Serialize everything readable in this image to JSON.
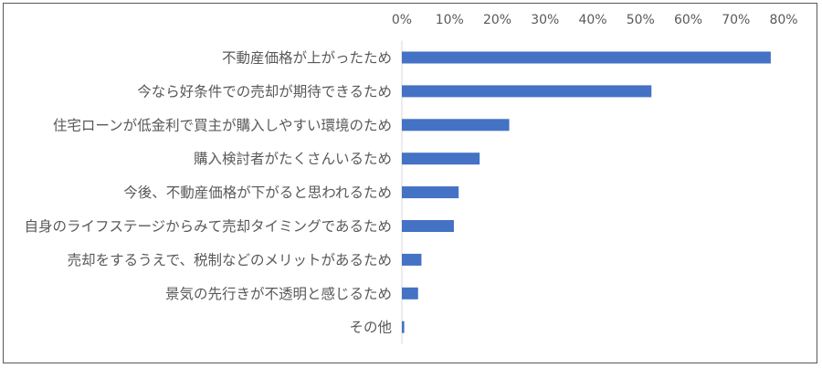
{
  "chart_data": {
    "type": "bar",
    "orientation": "horizontal",
    "title": "",
    "xlabel": "",
    "ylabel": "",
    "xlim": [
      0,
      80
    ],
    "x_ticks": [
      "0%",
      "10%",
      "20%",
      "30%",
      "40%",
      "50%",
      "60%",
      "70%",
      "80%"
    ],
    "tick_axis_position": "top",
    "grid": false,
    "bar_color": "#4472C4",
    "categories": [
      "不動産価格が上がったため",
      "今なら好条件での売却が期待できるため",
      "住宅ローンが低金利で買主が購入しやすい環境のため",
      "購入検討者がたくさんいるため",
      "今後、不動産価格が下がると思われるため",
      "自身のライフステージからみて売却タイミングであるため",
      "売却をするうえで、税制などのメリットがあるため",
      "景気の先行きが不透明と感じるため",
      "その他"
    ],
    "values": [
      77.3,
      52.3,
      22.5,
      16.3,
      11.9,
      10.9,
      4.1,
      3.4,
      0.5
    ],
    "unit": "%"
  }
}
